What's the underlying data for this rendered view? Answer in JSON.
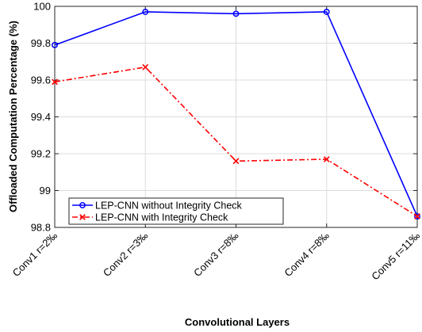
{
  "chart_data": {
    "type": "line",
    "title": "",
    "xlabel": "Convolutional Layers",
    "ylabel": "Offloaded Computation Percentage (%)",
    "categories": [
      "Conv1 r=2‰",
      "Conv2 r=3‰",
      "Conv3 r=8‰",
      "Conv4 r=8‰",
      "Conv5 r=11‰"
    ],
    "ylim": [
      98.8,
      100
    ],
    "yticks": [
      98.8,
      99,
      99.2,
      99.4,
      99.6,
      99.8,
      100
    ],
    "ytick_labels": [
      "98.8",
      "99",
      "99.2",
      "99.4",
      "99.6",
      "99.8",
      "100"
    ],
    "grid": true,
    "legend_position": "bottom-left",
    "series": [
      {
        "name": "LEP-CNN without Integrity Check",
        "values": [
          99.79,
          99.97,
          99.96,
          99.97,
          98.86
        ],
        "color": "#0000ff",
        "line_style": "solid",
        "marker": "circle"
      },
      {
        "name": "LEP-CNN with Integrity Check",
        "values": [
          99.59,
          99.67,
          99.16,
          99.17,
          98.86
        ],
        "color": "#ff0000",
        "line_style": "dash-dot",
        "marker": "x"
      }
    ]
  }
}
